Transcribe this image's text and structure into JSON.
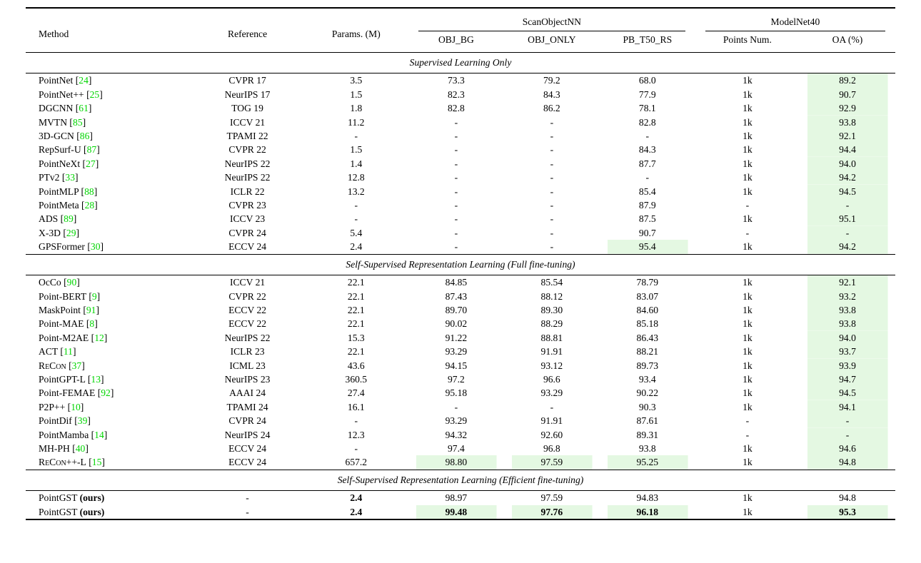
{
  "table": {
    "ours_suffix": "(ours)",
    "colors": {
      "highlight_green": "#e4f8e2",
      "citation_green": "#00d500"
    },
    "headers": {
      "method": "Method",
      "reference": "Reference",
      "params": "Params. (M)",
      "group_scan": "ScanObjectNN",
      "group_modelnet": "ModelNet40",
      "obj_bg": "OBJ_BG",
      "obj_only": "OBJ_ONLY",
      "pb_t50_rs": "PB_T50_RS",
      "points_num": "Points Num.",
      "oa": "OA (%)"
    },
    "sections": [
      {
        "title": "Supervised Learning Only",
        "rows": [
          {
            "method": "PointNet",
            "cite": "24",
            "reference": "CVPR 17",
            "params": "3.5",
            "obj_bg": "73.3",
            "obj_only": "79.2",
            "pb_t50_rs": "68.0",
            "points_num": "1k",
            "oa": "89.2",
            "hl": [
              "oa"
            ],
            "bold": []
          },
          {
            "method": "PointNet++",
            "cite": "25",
            "reference": "NeurIPS 17",
            "params": "1.5",
            "obj_bg": "82.3",
            "obj_only": "84.3",
            "pb_t50_rs": "77.9",
            "points_num": "1k",
            "oa": "90.7",
            "hl": [
              "oa"
            ],
            "bold": []
          },
          {
            "method": "DGCNN",
            "cite": "61",
            "reference": "TOG 19",
            "params": "1.8",
            "obj_bg": "82.8",
            "obj_only": "86.2",
            "pb_t50_rs": "78.1",
            "points_num": "1k",
            "oa": "92.9",
            "hl": [
              "oa"
            ],
            "bold": []
          },
          {
            "method": "MVTN",
            "cite": "85",
            "reference": "ICCV 21",
            "params": "11.2",
            "obj_bg": "-",
            "obj_only": "-",
            "pb_t50_rs": "82.8",
            "points_num": "1k",
            "oa": "93.8",
            "hl": [
              "oa"
            ],
            "bold": []
          },
          {
            "method": "3D-GCN",
            "cite": "86",
            "reference": "TPAMI 22",
            "params": "-",
            "obj_bg": "-",
            "obj_only": "-",
            "pb_t50_rs": "-",
            "points_num": "1k",
            "oa": "92.1",
            "hl": [
              "oa"
            ],
            "bold": []
          },
          {
            "method": "RepSurf-U",
            "cite": "87",
            "reference": "CVPR 22",
            "params": "1.5",
            "obj_bg": "-",
            "obj_only": "-",
            "pb_t50_rs": "84.3",
            "points_num": "1k",
            "oa": "94.4",
            "hl": [
              "oa"
            ],
            "bold": []
          },
          {
            "method": "PointNeXt",
            "cite": "27",
            "reference": "NeurIPS 22",
            "params": "1.4",
            "obj_bg": "-",
            "obj_only": "-",
            "pb_t50_rs": "87.7",
            "points_num": "1k",
            "oa": "94.0",
            "hl": [
              "oa"
            ],
            "bold": []
          },
          {
            "method": "PTv2",
            "cite": "33",
            "reference": "NeurIPS 22",
            "params": "12.8",
            "obj_bg": "-",
            "obj_only": "-",
            "pb_t50_rs": "-",
            "points_num": "1k",
            "oa": "94.2",
            "hl": [
              "oa"
            ],
            "bold": []
          },
          {
            "method": "PointMLP",
            "cite": "88",
            "reference": "ICLR 22",
            "params": "13.2",
            "obj_bg": "-",
            "obj_only": "-",
            "pb_t50_rs": "85.4",
            "points_num": "1k",
            "oa": "94.5",
            "hl": [
              "oa"
            ],
            "bold": []
          },
          {
            "method": "PointMeta",
            "cite": "28",
            "reference": "CVPR 23",
            "params": "-",
            "obj_bg": "-",
            "obj_only": "-",
            "pb_t50_rs": "87.9",
            "points_num": "-",
            "oa": "-",
            "hl": [
              "oa"
            ],
            "bold": []
          },
          {
            "method": "ADS",
            "cite": "89",
            "reference": "ICCV 23",
            "params": "-",
            "obj_bg": "-",
            "obj_only": "-",
            "pb_t50_rs": "87.5",
            "points_num": "1k",
            "oa": "95.1",
            "hl": [
              "oa"
            ],
            "bold": []
          },
          {
            "method": "X-3D",
            "cite": "29",
            "reference": "CVPR 24",
            "params": "5.4",
            "obj_bg": "-",
            "obj_only": "-",
            "pb_t50_rs": "90.7",
            "points_num": "-",
            "oa": "-",
            "hl": [
              "oa"
            ],
            "bold": []
          },
          {
            "method": "GPSFormer",
            "cite": "30",
            "reference": "ECCV 24",
            "params": "2.4",
            "obj_bg": "-",
            "obj_only": "-",
            "pb_t50_rs": "95.4",
            "points_num": "1k",
            "oa": "94.2",
            "hl": [
              "pb_t50_rs",
              "oa"
            ],
            "bold": []
          }
        ]
      },
      {
        "title": "Self-Supervised Representation Learning (Full fine-tuning)",
        "rows": [
          {
            "method": "OcCo",
            "cite": "90",
            "reference": "ICCV 21",
            "params": "22.1",
            "obj_bg": "84.85",
            "obj_only": "85.54",
            "pb_t50_rs": "78.79",
            "points_num": "1k",
            "oa": "92.1",
            "hl": [
              "oa"
            ],
            "bold": []
          },
          {
            "method": "Point-BERT",
            "cite": "9",
            "reference": "CVPR 22",
            "params": "22.1",
            "obj_bg": "87.43",
            "obj_only": "88.12",
            "pb_t50_rs": "83.07",
            "points_num": "1k",
            "oa": "93.2",
            "hl": [
              "oa"
            ],
            "bold": []
          },
          {
            "method": "MaskPoint",
            "cite": "91",
            "reference": "ECCV 22",
            "params": "22.1",
            "obj_bg": "89.70",
            "obj_only": "89.30",
            "pb_t50_rs": "84.60",
            "points_num": "1k",
            "oa": "93.8",
            "hl": [
              "oa"
            ],
            "bold": []
          },
          {
            "method": "Point-MAE",
            "cite": "8",
            "reference": "ECCV 22",
            "params": "22.1",
            "obj_bg": "90.02",
            "obj_only": "88.29",
            "pb_t50_rs": "85.18",
            "points_num": "1k",
            "oa": "93.8",
            "hl": [
              "oa"
            ],
            "bold": []
          },
          {
            "method": "Point-M2AE",
            "cite": "12",
            "reference": "NeurIPS 22",
            "params": "15.3",
            "obj_bg": "91.22",
            "obj_only": "88.81",
            "pb_t50_rs": "86.43",
            "points_num": "1k",
            "oa": "94.0",
            "hl": [
              "oa"
            ],
            "bold": []
          },
          {
            "method": "ACT",
            "cite": "11",
            "reference": "ICLR 23",
            "params": "22.1",
            "obj_bg": "93.29",
            "obj_only": "91.91",
            "pb_t50_rs": "88.21",
            "points_num": "1k",
            "oa": "93.7",
            "hl": [
              "oa"
            ],
            "bold": []
          },
          {
            "method": "ReCon",
            "cite": "37",
            "smallcaps": true,
            "reference": "ICML 23",
            "params": "43.6",
            "obj_bg": "94.15",
            "obj_only": "93.12",
            "pb_t50_rs": "89.73",
            "points_num": "1k",
            "oa": "93.9",
            "hl": [
              "oa"
            ],
            "bold": []
          },
          {
            "method": "PointGPT-L",
            "cite": "13",
            "reference": "NeurIPS 23",
            "params": "360.5",
            "obj_bg": "97.2",
            "obj_only": "96.6",
            "pb_t50_rs": "93.4",
            "points_num": "1k",
            "oa": "94.7",
            "hl": [
              "oa"
            ],
            "bold": []
          },
          {
            "method": "Point-FEMAE",
            "cite": "92",
            "reference": "AAAI 24",
            "params": "27.4",
            "obj_bg": "95.18",
            "obj_only": "93.29",
            "pb_t50_rs": "90.22",
            "points_num": "1k",
            "oa": "94.5",
            "hl": [
              "oa"
            ],
            "bold": []
          },
          {
            "method": "P2P++",
            "cite": "10",
            "reference": "TPAMI 24",
            "params": "16.1",
            "obj_bg": "-",
            "obj_only": "-",
            "pb_t50_rs": "90.3",
            "points_num": "1k",
            "oa": "94.1",
            "hl": [
              "oa"
            ],
            "bold": []
          },
          {
            "method": "PointDif",
            "cite": "39",
            "reference": "CVPR 24",
            "params": "-",
            "obj_bg": "93.29",
            "obj_only": "91.91",
            "pb_t50_rs": "87.61",
            "points_num": "-",
            "oa": "-",
            "hl": [
              "oa"
            ],
            "bold": []
          },
          {
            "method": "PointMamba",
            "cite": "14",
            "reference": "NeurIPS 24",
            "params": "12.3",
            "obj_bg": "94.32",
            "obj_only": "92.60",
            "pb_t50_rs": "89.31",
            "points_num": "-",
            "oa": "-",
            "hl": [
              "oa"
            ],
            "bold": []
          },
          {
            "method": "MH-PH",
            "cite": "40",
            "reference": "ECCV 24",
            "params": "-",
            "obj_bg": "97.4",
            "obj_only": "96.8",
            "pb_t50_rs": "93.8",
            "points_num": "1k",
            "oa": "94.6",
            "hl": [
              "oa"
            ],
            "bold": []
          },
          {
            "method": "ReCon++-L",
            "cite": "15",
            "smallcaps": true,
            "reference": "ECCV 24",
            "params": "657.2",
            "obj_bg": "98.80",
            "obj_only": "97.59",
            "pb_t50_rs": "95.25",
            "points_num": "1k",
            "oa": "94.8",
            "hl": [
              "obj_bg",
              "obj_only",
              "pb_t50_rs",
              "oa"
            ],
            "bold": []
          }
        ]
      },
      {
        "title": "Self-Supervised Representation Learning (Efficient fine-tuning)",
        "rows": [
          {
            "method": "PointGST",
            "ours": true,
            "reference": "-",
            "params": "2.4",
            "obj_bg": "98.97",
            "obj_only": "97.59",
            "pb_t50_rs": "94.83",
            "points_num": "1k",
            "oa": "94.8",
            "hl": [],
            "bold": [
              "params"
            ]
          },
          {
            "method": "PointGST",
            "ours": true,
            "reference": "-",
            "params": "2.4",
            "obj_bg": "99.48",
            "obj_only": "97.76",
            "pb_t50_rs": "96.18",
            "points_num": "1k",
            "oa": "95.3",
            "hl": [
              "obj_bg",
              "obj_only",
              "pb_t50_rs",
              "oa"
            ],
            "bold": [
              "params",
              "obj_bg",
              "obj_only",
              "pb_t50_rs",
              "oa"
            ]
          }
        ]
      }
    ]
  }
}
